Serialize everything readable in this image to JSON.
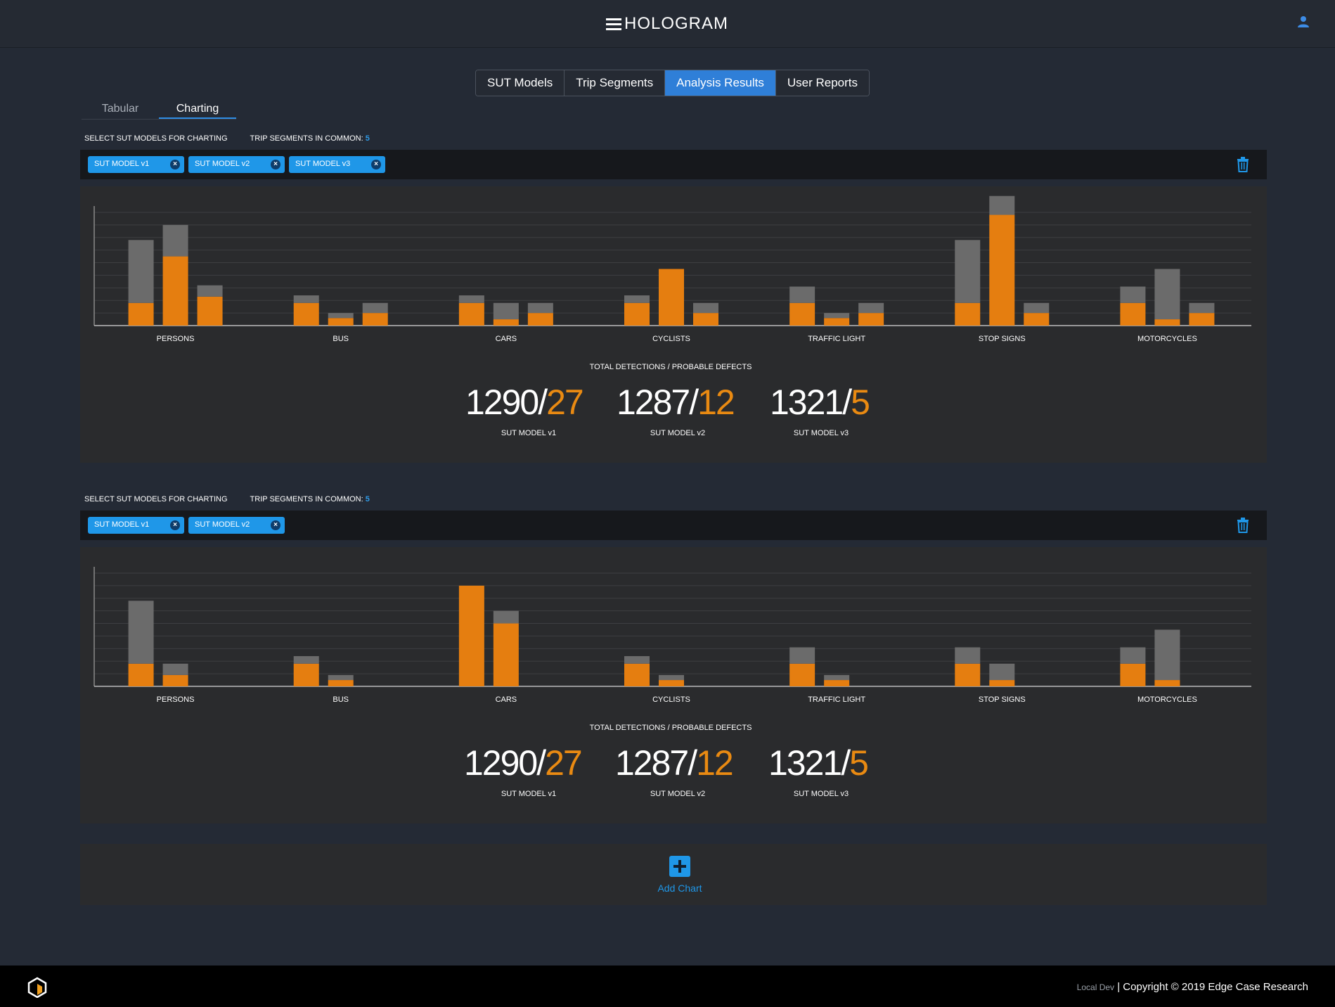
{
  "app": {
    "title": "HOLOGRAM",
    "logo_icon": "hamburger-lines-icon",
    "user_icon": "user-icon"
  },
  "main_tabs": [
    {
      "label": "SUT Models",
      "active": false
    },
    {
      "label": "Trip Segments",
      "active": false
    },
    {
      "label": "Analysis Results",
      "active": true
    },
    {
      "label": "User Reports",
      "active": false
    }
  ],
  "sub_tabs": [
    {
      "label": "Tabular",
      "active": false
    },
    {
      "label": "Charting",
      "active": true
    }
  ],
  "panels": [
    {
      "select_label": "SELECT SUT MODELS FOR CHARTING",
      "common_label": "TRIP SEGMENTS IN COMMON:",
      "common_count": "5",
      "chips": [
        "SUT MODEL v1",
        "SUT MODEL v2",
        "SUT MODEL v3"
      ],
      "totals_title": "TOTAL DETECTIONS / PROBABLE DEFECTS",
      "totals": [
        {
          "detections": "1290/",
          "defects": "27",
          "model": "SUT MODEL v1"
        },
        {
          "detections": "1287/",
          "defects": "12",
          "model": "SUT MODEL v2"
        },
        {
          "detections": "1321/",
          "defects": "5",
          "model": "SUT MODEL v3"
        }
      ]
    },
    {
      "select_label": "SELECT SUT MODELS FOR CHARTING",
      "common_label": "TRIP SEGMENTS IN COMMON:",
      "common_count": "5",
      "chips": [
        "SUT MODEL v1",
        "SUT MODEL v2"
      ],
      "totals_title": "TOTAL DETECTIONS / PROBABLE DEFECTS",
      "totals": [
        {
          "detections": "1290/",
          "defects": "27",
          "model": "SUT MODEL v1"
        },
        {
          "detections": "1287/",
          "defects": "12",
          "model": "SUT MODEL v2"
        },
        {
          "detections": "1321/",
          "defects": "5",
          "model": "SUT MODEL v3"
        }
      ]
    }
  ],
  "chart_data": [
    {
      "type": "bar",
      "stacked": true,
      "categories": [
        "PERSONS",
        "BUS",
        "CARS",
        "CYCLISTS",
        "TRAFFIC LIGHT",
        "STOP SIGNS",
        "MOTORCYCLES"
      ],
      "ylim": [
        0,
        9.5
      ],
      "grid": true,
      "colors": {
        "orange": "#e57e10",
        "gray": "#6b6b6b"
      },
      "groups": [
        [
          {
            "orange": 1.8,
            "gray": 5.0
          },
          {
            "orange": 5.5,
            "gray": 2.5
          },
          {
            "orange": 2.3,
            "gray": 0.9
          }
        ],
        [
          {
            "orange": 1.8,
            "gray": 0.6
          },
          {
            "orange": 0.6,
            "gray": 0.4
          },
          {
            "orange": 1.0,
            "gray": 0.8
          }
        ],
        [
          {
            "orange": 1.8,
            "gray": 0.6
          },
          {
            "orange": 0.5,
            "gray": 1.3
          },
          {
            "orange": 1.0,
            "gray": 0.8
          }
        ],
        [
          {
            "orange": 1.8,
            "gray": 0.6
          },
          {
            "orange": 4.5,
            "gray": 0.0
          },
          {
            "orange": 1.0,
            "gray": 0.8
          }
        ],
        [
          {
            "orange": 1.8,
            "gray": 1.3
          },
          {
            "orange": 0.6,
            "gray": 0.4
          },
          {
            "orange": 1.0,
            "gray": 0.8
          }
        ],
        [
          {
            "orange": 1.8,
            "gray": 5.0
          },
          {
            "orange": 8.8,
            "gray": 1.5
          },
          {
            "orange": 1.0,
            "gray": 0.8
          }
        ],
        [
          {
            "orange": 1.8,
            "gray": 1.3
          },
          {
            "orange": 0.5,
            "gray": 4.0
          },
          {
            "orange": 1.0,
            "gray": 0.8
          }
        ]
      ]
    },
    {
      "type": "bar",
      "stacked": true,
      "categories": [
        "PERSONS",
        "BUS",
        "CARS",
        "CYCLISTS",
        "TRAFFIC LIGHT",
        "STOP SIGNS",
        "MOTORCYCLES"
      ],
      "ylim": [
        0,
        9.5
      ],
      "grid": true,
      "colors": {
        "orange": "#e57e10",
        "gray": "#6b6b6b"
      },
      "groups": [
        [
          {
            "orange": 1.8,
            "gray": 5.0
          },
          {
            "orange": 0.9,
            "gray": 0.9
          }
        ],
        [
          {
            "orange": 1.8,
            "gray": 0.6
          },
          {
            "orange": 0.5,
            "gray": 0.4
          }
        ],
        [
          {
            "orange": 8.0,
            "gray": 0.0
          },
          {
            "orange": 5.0,
            "gray": 1.0
          }
        ],
        [
          {
            "orange": 1.8,
            "gray": 0.6
          },
          {
            "orange": 0.5,
            "gray": 0.4
          }
        ],
        [
          {
            "orange": 1.8,
            "gray": 1.3
          },
          {
            "orange": 0.5,
            "gray": 0.4
          }
        ],
        [
          {
            "orange": 1.8,
            "gray": 1.3
          },
          {
            "orange": 0.5,
            "gray": 1.3
          }
        ],
        [
          {
            "orange": 1.8,
            "gray": 1.3
          },
          {
            "orange": 0.5,
            "gray": 4.0
          }
        ]
      ]
    }
  ],
  "add_chart": {
    "label": "Add Chart",
    "icon": "plus-square-icon"
  },
  "footer": {
    "env": "Local Dev",
    "copyright": "| Copyright © 2019 Edge Case Research",
    "logo_icon": "edge-case-logo-icon"
  }
}
